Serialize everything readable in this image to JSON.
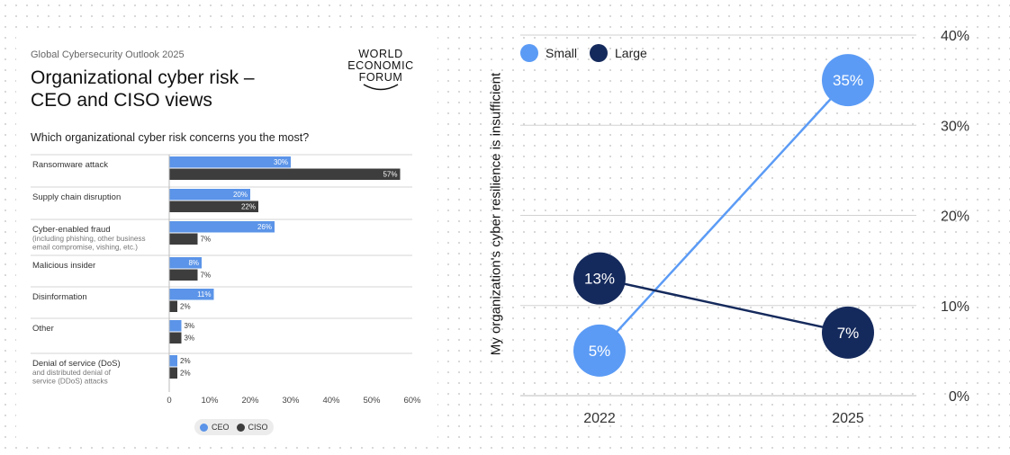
{
  "left": {
    "subtitle": "Global Cybersecurity Outlook 2025",
    "title_line1": "Organizational cyber risk –",
    "title_line2": "CEO and CISO views",
    "logo_line1": "WORLD",
    "logo_line2": "ECONOMIC",
    "logo_line3": "FORUM",
    "question": "Which organizational cyber risk concerns you the most?",
    "legend_ceo": "CEO",
    "legend_ciso": "CISO"
  },
  "right": {
    "legend_small": "Small",
    "legend_large": "Large",
    "y_title": "My organization's cyber resilience is insufficient"
  },
  "colors": {
    "ceo": "#5b94e8",
    "ciso": "#3d3d3d",
    "small": "#5b9bf5",
    "large": "#152a5c"
  },
  "chart_data": [
    {
      "type": "bar",
      "orientation": "horizontal",
      "title": "Which organizational cyber risk concerns you the most?",
      "categories": [
        [
          "Ransomware attack"
        ],
        [
          "Supply chain disruption"
        ],
        [
          "Cyber-enabled fraud",
          "(including phishing, other business",
          "email compromise, vishing, etc.)"
        ],
        [
          "Malicious insider"
        ],
        [
          "Disinformation"
        ],
        [
          "Other"
        ],
        [
          "Denial of service (DoS)",
          "and distributed denial of",
          "service (DDoS) attacks"
        ]
      ],
      "series": [
        {
          "name": "CEO",
          "values": [
            30,
            20,
            26,
            8,
            11,
            3,
            2
          ]
        },
        {
          "name": "CISO",
          "values": [
            57,
            22,
            7,
            7,
            2,
            3,
            2
          ]
        }
      ],
      "xlim": [
        0,
        60
      ],
      "xticks": [
        "0",
        "10%",
        "20%",
        "30%",
        "40%",
        "50%",
        "60%"
      ],
      "legend": "bottom"
    },
    {
      "type": "line",
      "x": [
        "2022",
        "2025"
      ],
      "series": [
        {
          "name": "Small",
          "values": [
            5,
            35
          ]
        },
        {
          "name": "Large",
          "values": [
            13,
            7
          ]
        }
      ],
      "ylabel": "My organization's cyber resilience is insufficient",
      "ylim": [
        0,
        40
      ],
      "yticks": [
        "0%",
        "10%",
        "20%",
        "30%",
        "40%"
      ],
      "legend": "top-left"
    }
  ]
}
